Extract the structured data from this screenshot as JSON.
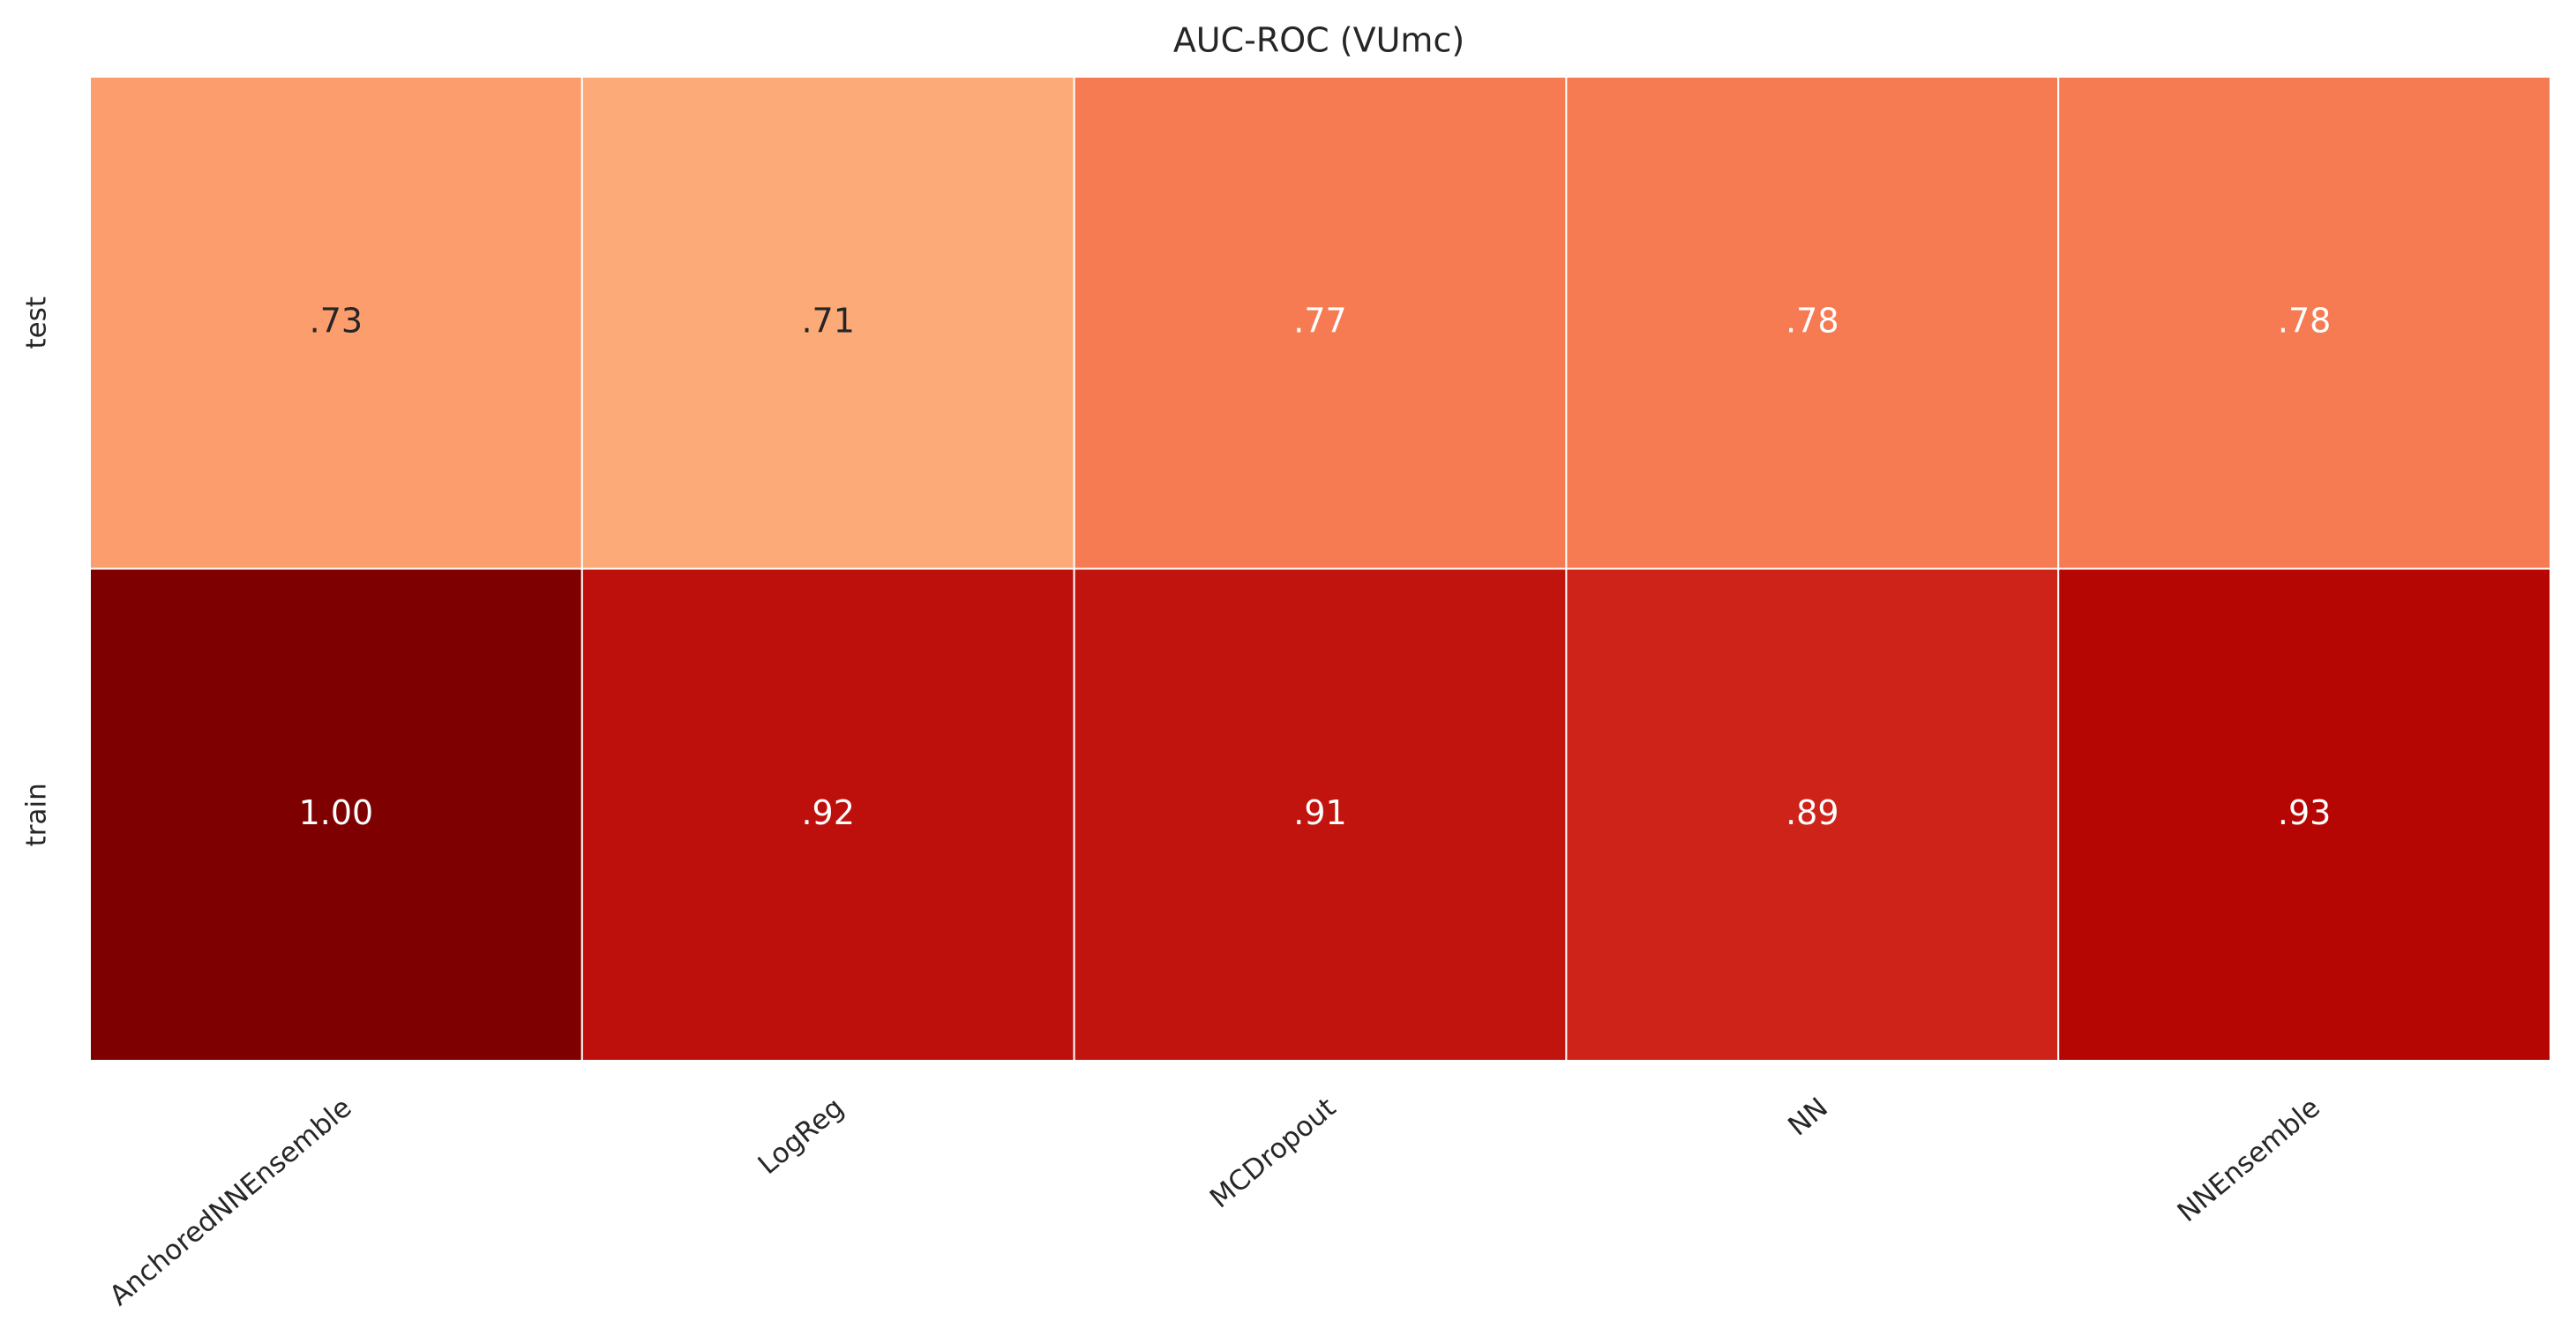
{
  "chart_data": {
    "type": "heatmap",
    "title": "AUC-ROC (VUmc)",
    "xlabel": "",
    "ylabel": "",
    "x_categories": [
      "AnchoredNNEnsemble",
      "LogReg",
      "MCDropout",
      "NN",
      "NNEnsemble"
    ],
    "y_categories": [
      "test",
      "train"
    ],
    "values": [
      [
        0.73,
        0.71,
        0.77,
        0.78,
        0.78
      ],
      [
        1.0,
        0.92,
        0.91,
        0.89,
        0.93
      ]
    ],
    "cell_labels": [
      [
        ".73",
        ".71",
        ".77",
        ".78",
        ".78"
      ],
      [
        "1.00",
        ".92",
        ".91",
        ".89",
        ".93"
      ]
    ],
    "colormap": "OrRd",
    "vlim": [
      0.7,
      1.0
    ],
    "colorbar": false,
    "grid": false,
    "cell_border_color": "#ffffff",
    "cell_colors": [
      [
        "#fc9d6d",
        "#fcab78",
        "#f67b53",
        "#f67a52",
        "#f67b53"
      ],
      [
        "#7f0000",
        "#bd100d",
        "#c1140f",
        "#cd2319",
        "#b60604"
      ]
    ],
    "label_colors": [
      [
        "#262626",
        "#262626",
        "#ffffff",
        "#ffffff",
        "#ffffff"
      ],
      [
        "#ffffff",
        "#ffffff",
        "#ffffff",
        "#ffffff",
        "#ffffff"
      ]
    ]
  }
}
